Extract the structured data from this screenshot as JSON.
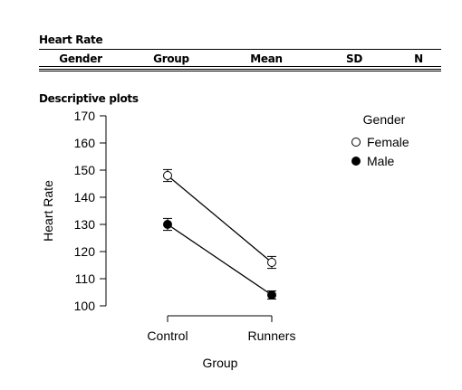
{
  "table": {
    "title": "Heart Rate",
    "columns": [
      "Gender",
      "Group",
      "Mean",
      "SD",
      "N"
    ]
  },
  "plots": {
    "title": "Descriptive plots"
  },
  "chart_data": {
    "type": "line",
    "title": "",
    "xlabel": "Group",
    "ylabel": "Heart Rate",
    "categories": [
      "Control",
      "Runners"
    ],
    "yticks": [
      100,
      110,
      120,
      130,
      140,
      150,
      160,
      170
    ],
    "ylim": [
      100,
      170
    ],
    "legend": {
      "title": "Gender",
      "placement": "top-right"
    },
    "grid": false,
    "series": [
      {
        "name": "Female",
        "marker": "open-circle",
        "values": [
          148,
          116
        ],
        "error": [
          2.2,
          2.2
        ]
      },
      {
        "name": "Male",
        "marker": "filled-circle",
        "values": [
          130,
          104
        ],
        "error": [
          2.2,
          1.5
        ]
      }
    ]
  }
}
